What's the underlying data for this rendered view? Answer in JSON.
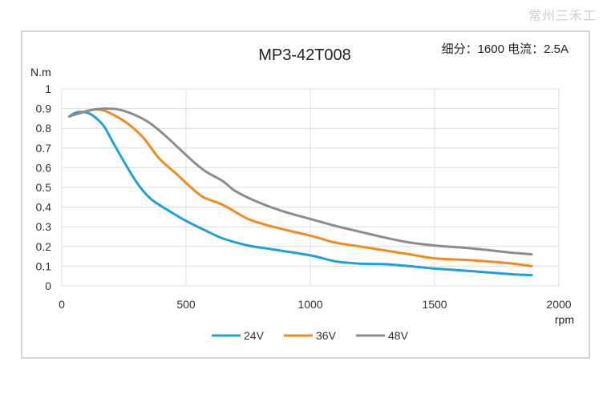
{
  "watermark": "常州三禾工",
  "chart_data": {
    "type": "line",
    "title": "MP3-42T008",
    "annotation": "细分：1600 电流：2.5A",
    "ylabel": "N.m",
    "xlabel": "rpm",
    "xlim": [
      0,
      2000
    ],
    "ylim": [
      0,
      1
    ],
    "xticks": [
      "0",
      "500",
      "1000",
      "1500",
      "2000"
    ],
    "yticks": [
      "0",
      "0.1",
      "0.2",
      "0.3",
      "0.4",
      "0.5",
      "0.6",
      "0.7",
      "0.8",
      "0.9",
      "1"
    ],
    "grid": true,
    "legend_position": "bottom",
    "series": [
      {
        "name": "24V",
        "color": "#1ea0dc",
        "points": [
          [
            30,
            0.86
          ],
          [
            60,
            0.88
          ],
          [
            100,
            0.88
          ],
          [
            130,
            0.86
          ],
          [
            170,
            0.81
          ],
          [
            210,
            0.72
          ],
          [
            260,
            0.61
          ],
          [
            310,
            0.51
          ],
          [
            360,
            0.44
          ],
          [
            420,
            0.39
          ],
          [
            500,
            0.33
          ],
          [
            580,
            0.28
          ],
          [
            650,
            0.24
          ],
          [
            750,
            0.205
          ],
          [
            850,
            0.185
          ],
          [
            1000,
            0.155
          ],
          [
            1100,
            0.125
          ],
          [
            1200,
            0.113
          ],
          [
            1300,
            0.11
          ],
          [
            1400,
            0.1
          ],
          [
            1500,
            0.088
          ],
          [
            1650,
            0.075
          ],
          [
            1800,
            0.06
          ],
          [
            1890,
            0.055
          ]
        ]
      },
      {
        "name": "36V",
        "color": "#f28a1d",
        "points": [
          [
            30,
            0.86
          ],
          [
            80,
            0.88
          ],
          [
            130,
            0.895
          ],
          [
            170,
            0.89
          ],
          [
            220,
            0.86
          ],
          [
            270,
            0.82
          ],
          [
            330,
            0.75
          ],
          [
            390,
            0.65
          ],
          [
            460,
            0.57
          ],
          [
            520,
            0.5
          ],
          [
            570,
            0.45
          ],
          [
            650,
            0.41
          ],
          [
            750,
            0.34
          ],
          [
            850,
            0.3
          ],
          [
            1000,
            0.255
          ],
          [
            1100,
            0.22
          ],
          [
            1200,
            0.2
          ],
          [
            1300,
            0.18
          ],
          [
            1400,
            0.16
          ],
          [
            1500,
            0.14
          ],
          [
            1650,
            0.13
          ],
          [
            1800,
            0.115
          ],
          [
            1890,
            0.1
          ]
        ]
      },
      {
        "name": "48V",
        "color": "#8c8c8c",
        "points": [
          [
            30,
            0.86
          ],
          [
            80,
            0.88
          ],
          [
            130,
            0.895
          ],
          [
            180,
            0.9
          ],
          [
            230,
            0.895
          ],
          [
            290,
            0.87
          ],
          [
            350,
            0.83
          ],
          [
            410,
            0.77
          ],
          [
            470,
            0.7
          ],
          [
            530,
            0.63
          ],
          [
            580,
            0.58
          ],
          [
            650,
            0.53
          ],
          [
            700,
            0.48
          ],
          [
            800,
            0.42
          ],
          [
            900,
            0.375
          ],
          [
            1000,
            0.34
          ],
          [
            1100,
            0.305
          ],
          [
            1200,
            0.275
          ],
          [
            1300,
            0.245
          ],
          [
            1400,
            0.22
          ],
          [
            1500,
            0.205
          ],
          [
            1650,
            0.19
          ],
          [
            1800,
            0.17
          ],
          [
            1890,
            0.16
          ]
        ]
      }
    ]
  }
}
